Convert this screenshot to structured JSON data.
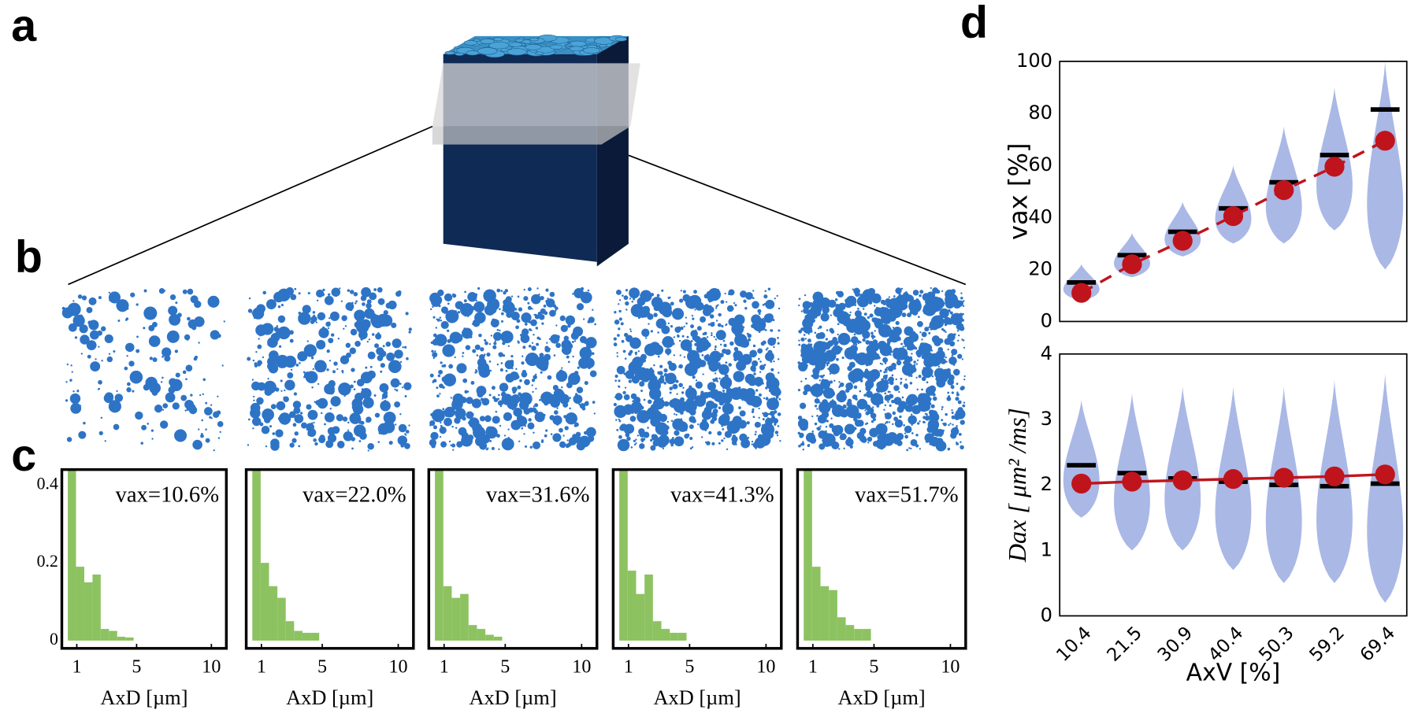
{
  "panels": [
    "a",
    "b",
    "c",
    "d"
  ],
  "chart_data": [
    {
      "type": "histogram",
      "annotation": "vax=10.6%",
      "xlabel": "AxD [µm]",
      "color": "#8dc261",
      "bins": [
        0.4,
        0.95,
        1.5,
        2.05,
        2.6,
        3.15,
        3.7,
        4.25,
        4.8
      ],
      "counts": [
        0.44,
        0.19,
        0.15,
        0.17,
        0.03,
        0.025,
        0.01,
        0.008
      ],
      "xlim": [
        0,
        11
      ],
      "xticks": [
        1,
        5,
        10
      ],
      "ylim": [
        -0.02,
        0.44
      ],
      "yticks": [
        0,
        0.2,
        0.4
      ]
    },
    {
      "type": "histogram",
      "annotation": "vax=22.0%",
      "xlabel": "AxD [µm]",
      "color": "#8dc261",
      "bins": [
        0.4,
        0.95,
        1.5,
        2.05,
        2.6,
        3.15,
        3.7,
        4.25,
        4.8
      ],
      "counts": [
        0.44,
        0.2,
        0.14,
        0.11,
        0.05,
        0.025,
        0.02,
        0.02
      ],
      "xlim": [
        0,
        11
      ],
      "xticks": [
        1,
        5,
        10
      ],
      "ylim": [
        -0.02,
        0.44
      ]
    },
    {
      "type": "histogram",
      "annotation": "vax=31.6%",
      "xlabel": "AxD [µm]",
      "color": "#8dc261",
      "bins": [
        0.4,
        0.95,
        1.5,
        2.05,
        2.6,
        3.15,
        3.7,
        4.25,
        4.8
      ],
      "counts": [
        0.44,
        0.14,
        0.11,
        0.12,
        0.04,
        0.03,
        0.015,
        0.01
      ],
      "xlim": [
        0,
        11
      ],
      "xticks": [
        1,
        5,
        10
      ],
      "ylim": [
        -0.02,
        0.44
      ]
    },
    {
      "type": "histogram",
      "annotation": "vax=41.3%",
      "xlabel": "AxD [µm]",
      "color": "#8dc261",
      "bins": [
        0.4,
        0.95,
        1.5,
        2.05,
        2.6,
        3.15,
        3.7,
        4.25,
        4.8
      ],
      "counts": [
        0.44,
        0.18,
        0.12,
        0.17,
        0.05,
        0.03,
        0.02,
        0.02
      ],
      "xlim": [
        0,
        11
      ],
      "xticks": [
        1,
        5,
        10
      ],
      "ylim": [
        -0.02,
        0.44
      ]
    },
    {
      "type": "histogram",
      "annotation": "vax=51.7%",
      "xlabel": "AxD [µm]",
      "color": "#8dc261",
      "bins": [
        0.4,
        0.95,
        1.5,
        2.05,
        2.6,
        3.15,
        3.7,
        4.25,
        4.8
      ],
      "counts": [
        0.44,
        0.19,
        0.14,
        0.13,
        0.06,
        0.04,
        0.03,
        0.03
      ],
      "xlim": [
        0,
        11
      ],
      "xticks": [
        1,
        5,
        10
      ],
      "ylim": [
        -0.02,
        0.44
      ]
    },
    {
      "type": "violin",
      "ylabel": "vax [%]",
      "ylim": [
        0,
        100
      ],
      "yticks": [
        0,
        20,
        40,
        60,
        80,
        100
      ],
      "violins": {
        "color": "#aab8e6",
        "low": [
          8,
          17,
          25,
          30,
          30,
          35,
          20
        ],
        "high": [
          22,
          34,
          46,
          60,
          75,
          90,
          100
        ]
      },
      "series": [
        {
          "color": "#000000",
          "marker": "bar",
          "values": [
            15,
            25.5,
            34.5,
            43.5,
            53.5,
            64,
            81.5
          ]
        },
        {
          "color": "#c0141c",
          "marker": "dot",
          "line": "dashed",
          "values": [
            11,
            22,
            31,
            40.5,
            50.5,
            59.5,
            69.5
          ]
        }
      ]
    },
    {
      "type": "violin",
      "ylabel": "Dax [ μm² /ms]",
      "xlabel": "AxV [%]",
      "categories": [
        "10.4",
        "21.5",
        "30.9",
        "40.4",
        "50.3",
        "59.2",
        "69.4"
      ],
      "ylim": [
        0,
        4
      ],
      "yticks": [
        0,
        1,
        2,
        3,
        4
      ],
      "violins": {
        "color": "#aab8e6",
        "low": [
          1.5,
          1,
          1,
          0.7,
          0.5,
          0.5,
          0.2
        ],
        "high": [
          3.3,
          3.4,
          3.5,
          3.5,
          3.5,
          3.6,
          3.7
        ]
      },
      "series": [
        {
          "color": "#000000",
          "marker": "bar",
          "values": [
            2.3,
            2.18,
            2.1,
            2.05,
            2.0,
            1.98,
            2.02
          ]
        },
        {
          "color": "#c0141c",
          "marker": "dot",
          "line": "solid",
          "values": [
            2.02,
            2.05,
            2.07,
            2.09,
            2.11,
            2.13,
            2.16
          ]
        }
      ]
    }
  ]
}
